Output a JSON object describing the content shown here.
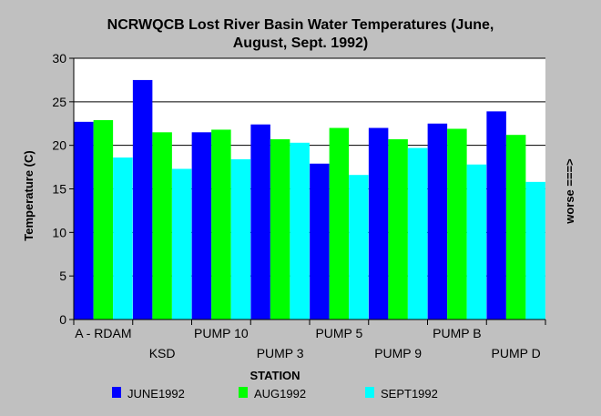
{
  "chart_data": {
    "type": "bar",
    "title": [
      "NCRWQCB Lost River Basin Water Temperatures (June,",
      "August, Sept. 1992)"
    ],
    "xlabel": "STATION",
    "ylabel": "Temperature (C)",
    "right_label": "worse ===>",
    "ylim": [
      0,
      30
    ],
    "yticks": [
      0,
      5,
      10,
      15,
      20,
      25,
      30
    ],
    "grid": true,
    "legend_position": "bottom",
    "categories": [
      "A - RDAM",
      "KSD",
      "PUMP 10",
      "PUMP 3",
      "PUMP 5",
      "PUMP 9",
      "PUMP B",
      "PUMP D"
    ],
    "series": [
      {
        "name": "JUNE1992",
        "color": "#0000ff",
        "values": [
          22.7,
          27.5,
          21.5,
          22.4,
          17.9,
          22.0,
          22.5,
          23.9
        ]
      },
      {
        "name": "AUG1992",
        "color": "#00ff00",
        "values": [
          22.9,
          21.5,
          21.8,
          20.7,
          22.0,
          20.7,
          21.9,
          21.2
        ]
      },
      {
        "name": "SEPT1992",
        "color": "#00ffff",
        "values": [
          18.6,
          17.3,
          18.4,
          20.3,
          16.6,
          19.7,
          17.8,
          15.8
        ]
      }
    ]
  }
}
